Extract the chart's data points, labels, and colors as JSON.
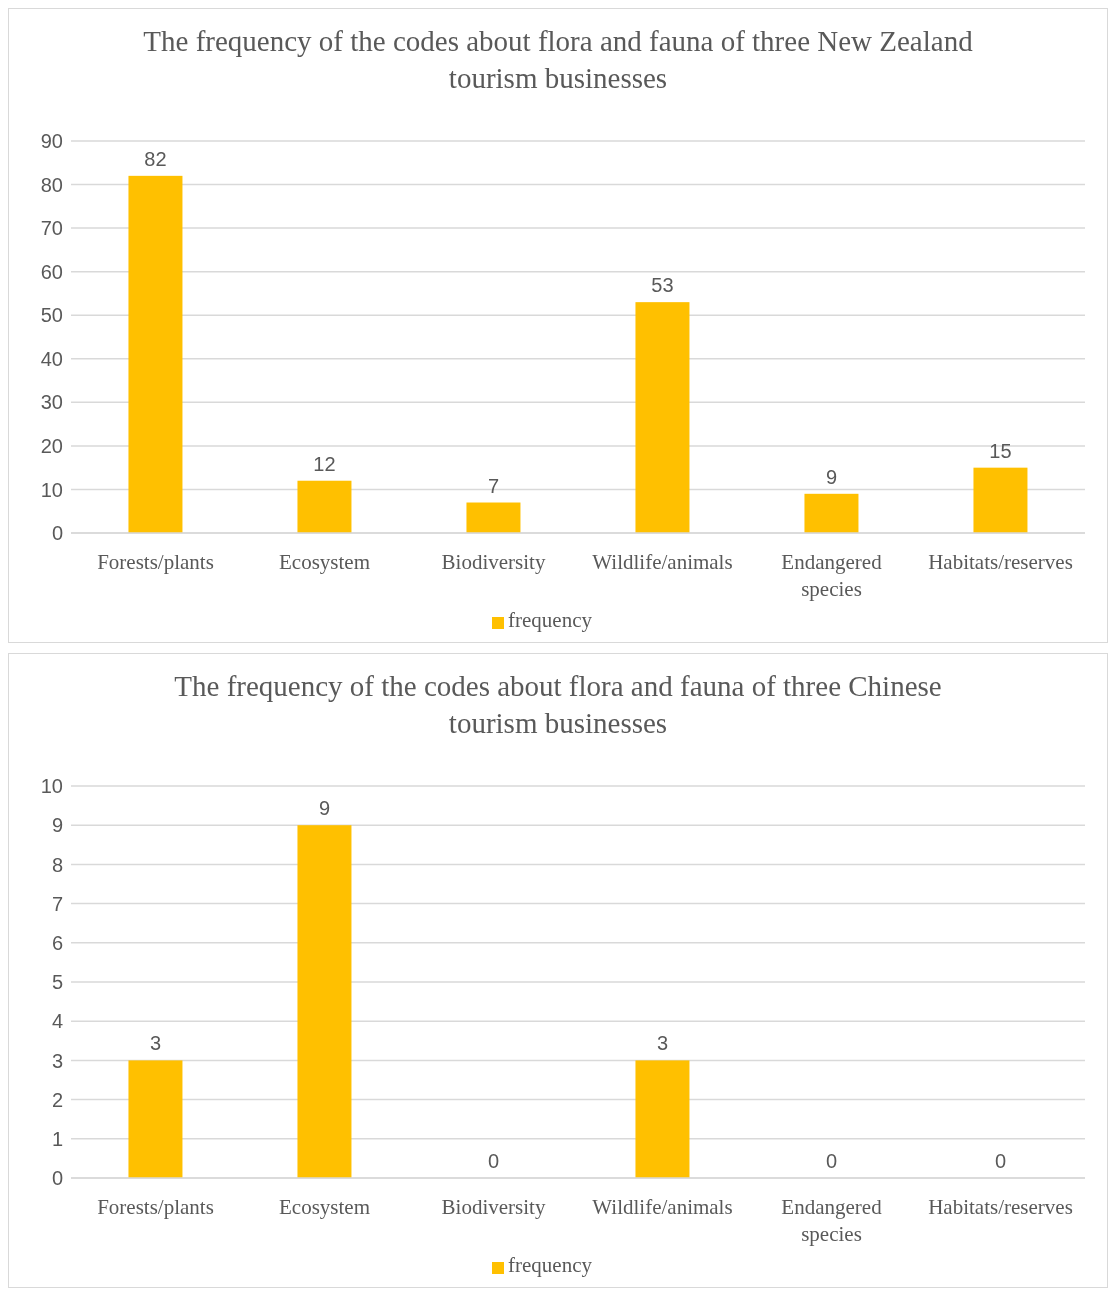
{
  "chart_data": [
    {
      "type": "bar",
      "title": "The frequency of the codes about flora and fauna of three New Zealand tourism businesses",
      "categories": [
        "Forests/plants",
        "Ecosystem",
        "Biodiversity",
        "Wildlife/animals",
        "Endangered species",
        "Habitats/reserves"
      ],
      "series": [
        {
          "name": "frequency",
          "color": "#ffc000",
          "values": [
            82,
            12,
            7,
            53,
            9,
            15
          ]
        }
      ],
      "ylim": [
        0,
        90
      ],
      "yticks": [
        0,
        10,
        20,
        30,
        40,
        50,
        60,
        70,
        80,
        90
      ],
      "grid": "y",
      "legend": "bottom",
      "data_labels": true
    },
    {
      "type": "bar",
      "title": "The frequency of the codes about flora and fauna of three Chinese tourism businesses",
      "categories": [
        "Forests/plants",
        "Ecosystem",
        "Biodiversity",
        "Wildlife/animals",
        "Endangered species",
        "Habitats/reserves"
      ],
      "series": [
        {
          "name": "frequency",
          "color": "#ffc000",
          "values": [
            3,
            9,
            0,
            3,
            0,
            0
          ]
        }
      ],
      "ylim": [
        0,
        10
      ],
      "yticks": [
        0,
        1,
        2,
        3,
        4,
        5,
        6,
        7,
        8,
        9,
        10
      ],
      "grid": "y",
      "legend": "bottom",
      "data_labels": true
    }
  ]
}
